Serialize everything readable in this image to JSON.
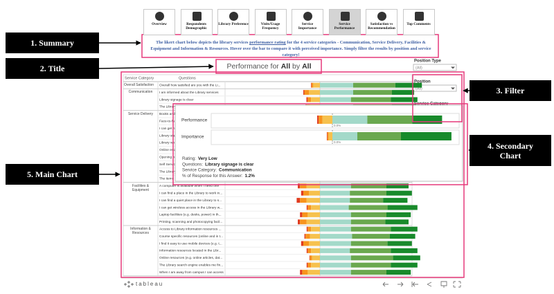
{
  "nav": {
    "tabs": [
      "Overview",
      "Respondents Demographic",
      "Library Preference",
      "Visits/Usage Frequency",
      "Service Importance",
      "Service Performance",
      "Satisfaction vs Recommendation",
      "Top Comments"
    ],
    "selected": 5
  },
  "callouts": [
    "1. Summary",
    "2. Title",
    "3. Filter",
    "4. Secondary Chart",
    "5. Main Chart"
  ],
  "summary": [
    "The likert chart below depicts the library services",
    "performance rating",
    "for the 4 service categories - Communication, Service Delivery, Facilities & Equipment and Information & Resources. Hover over the bar to compare it with perceived importance. Simply filter the results by position and service category!"
  ],
  "title": [
    "Performance for",
    "All",
    "by",
    "All"
  ],
  "filters": [
    {
      "label": "Position Type",
      "value": "(All)"
    },
    {
      "label": "Position",
      "value": "(All)"
    },
    {
      "label": "Service Category"
    }
  ],
  "chart_data": {
    "type": "bar",
    "headers": [
      "Service Category",
      "Questions"
    ],
    "colors": [
      "#e03b1f",
      "#f7941d",
      "#f6c14e",
      "#a3d9c9",
      "#6aa84f",
      "#188a2b"
    ],
    "groups": [
      {
        "name": "Overall Satisfaction",
        "rows": [
          {
            "question": "Overall how satisfied are you with the Li...",
            "values": [
              0.5,
              1.5,
              6,
              30,
              38,
              24
            ]
          }
        ]
      },
      {
        "name": "Communication",
        "rows": [
          {
            "question": "I am informed about the Library services",
            "values": [
              1,
              4,
              10,
              30,
              35,
              20
            ]
          },
          {
            "question": "Library signage is clear",
            "values": [
              1.2,
              3,
              8,
              28,
              36,
              24
            ]
          },
          {
            "question": "The Library website ...",
            "values": [
              1,
              3,
              9,
              30,
              35,
              22
            ]
          }
        ]
      },
      {
        "name": "Service Delivery",
        "rows": [
          {
            "question": "Books and",
            "values": null
          },
          {
            "question": "Face-to-fa",
            "values": null
          },
          {
            "question": "I can get h",
            "values": null
          },
          {
            "question": "Library staf",
            "values": null
          },
          {
            "question": "Library wo",
            "values": null
          },
          {
            "question": "Online enqu",
            "values": null
          },
          {
            "question": "Opening ho",
            "values": null
          },
          {
            "question": "Self Service",
            "values": null
          },
          {
            "question": "The Library",
            "values": null
          },
          {
            "question": "The items",
            "values": null
          }
        ]
      },
      {
        "name": "Facilities & Equipment",
        "rows": [
          {
            "question": "A computer is available when I need one",
            "values": [
              2,
              6,
              12,
              28,
              32,
              20
            ]
          },
          {
            "question": "I can find a place in the Library to work in...",
            "values": [
              2,
              5,
              10,
              27,
              33,
              23
            ]
          },
          {
            "question": "I can find a quiet place in the Library to s...",
            "values": [
              3,
              6,
              12,
              27,
              30,
              22
            ]
          },
          {
            "question": "I can get wireless access in the Library w...",
            "values": [
              1,
              3,
              8,
              26,
              35,
              27
            ]
          },
          {
            "question": "Laptop facilities (e.g. desks, power) in th...",
            "values": [
              2,
              5,
              11,
              28,
              32,
              22
            ]
          },
          {
            "question": "Printing, scanning and photocopying facil...",
            "values": [
              2,
              6,
              12,
              28,
              31,
              21
            ]
          }
        ]
      },
      {
        "name": "Information & Resources",
        "rows": [
          {
            "question": "Access to Library information resources ...",
            "values": [
              1,
              3,
              8,
              28,
              36,
              24
            ]
          },
          {
            "question": "Course specific resources (online and in t...",
            "values": [
              1,
              4,
              9,
              29,
              34,
              23
            ]
          },
          {
            "question": "I find it easy to use mobile devices (e.g. t...",
            "values": [
              2,
              5,
              10,
              28,
              33,
              22
            ]
          },
          {
            "question": "Information resources located in the Libr...",
            "values": [
              1,
              3,
              8,
              27,
              37,
              24
            ]
          },
          {
            "question": "Online resources (e.g. online articles, dat...",
            "values": [
              0.5,
              2,
              7,
              28,
              38,
              24.5
            ]
          },
          {
            "question": "The Library search engine enables me fin...",
            "values": [
              1,
              3,
              8,
              28,
              36,
              24
            ]
          },
          {
            "question": "When I am away from campus I can access...",
            "values": [
              2,
              5,
              11,
              28,
              32,
              22
            ]
          }
        ]
      }
    ]
  },
  "tooltip": {
    "bars": [
      {
        "name": "Performance",
        "values": [
          1.2,
          3,
          8,
          28,
          36,
          24
        ],
        "label": "0.0%"
      },
      {
        "name": "Importance",
        "values": [
          0.5,
          1,
          3,
          20,
          35,
          40.5
        ],
        "label": "0.0%"
      }
    ],
    "lines": [
      {
        "key": "Rating:",
        "value": "Very Low"
      },
      {
        "key": "Questions:",
        "value": "Library signage is clear"
      },
      {
        "key": "Service Category:",
        "value": "Communication"
      },
      {
        "key": "% of Response for this Answer:",
        "value": "1.2%"
      }
    ]
  },
  "footer": {
    "brand": "tableau"
  }
}
